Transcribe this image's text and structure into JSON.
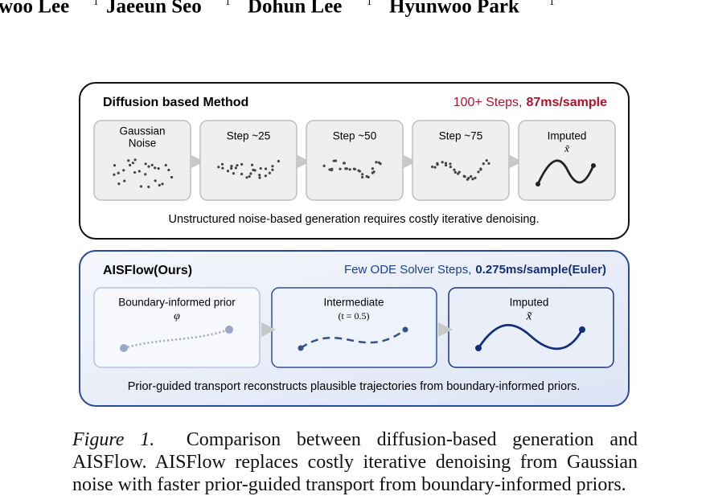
{
  "authors": [
    {
      "name": "woo Lee",
      "mark": "1"
    },
    {
      "name": "Jaeeun Seo",
      "mark": "1"
    },
    {
      "name": "Dohun Lee",
      "mark": "1"
    },
    {
      "name": "Hyunwoo Park",
      "mark": "1"
    }
  ],
  "diffusion": {
    "title": "Diffusion based Method",
    "cost": {
      "text": "100+ Steps,",
      "emphasis": "87ms/sample"
    },
    "panels": [
      {
        "label_lines": [
          "Gaussian",
          "Noise"
        ]
      },
      {
        "label_lines": [
          "Step ~25"
        ]
      },
      {
        "label_lines": [
          "Step ~50"
        ]
      },
      {
        "label_lines": [
          "Step ~75"
        ]
      },
      {
        "label_lines": [
          "Imputed"
        ],
        "symbol": "x̃"
      }
    ],
    "caption": "Unstructured noise-based generation requires costly iterative denoising."
  },
  "aisflow": {
    "title": "AISFlow(Ours)",
    "cost": {
      "text": "Few ODE Solver Steps,",
      "emphasis": "0.275ms/sample(Euler)"
    },
    "panels": [
      {
        "label": "Boundary-informed prior",
        "symbol": "φ"
      },
      {
        "label": "Intermediate",
        "symbol": "(t = 0.5)"
      },
      {
        "label": "Imputed",
        "symbol": "x̃"
      }
    ],
    "caption": "Prior-guided transport reconstructs plausible trajectories from boundary-informed priors."
  },
  "figure_caption": {
    "label": "Figure 1.",
    "text": "Comparison between diffusion-based generation and AISFlow. AISFlow replaces costly iterative denoising from Gaussian noise with faster prior-guided transport from boundary-informed priors."
  }
}
